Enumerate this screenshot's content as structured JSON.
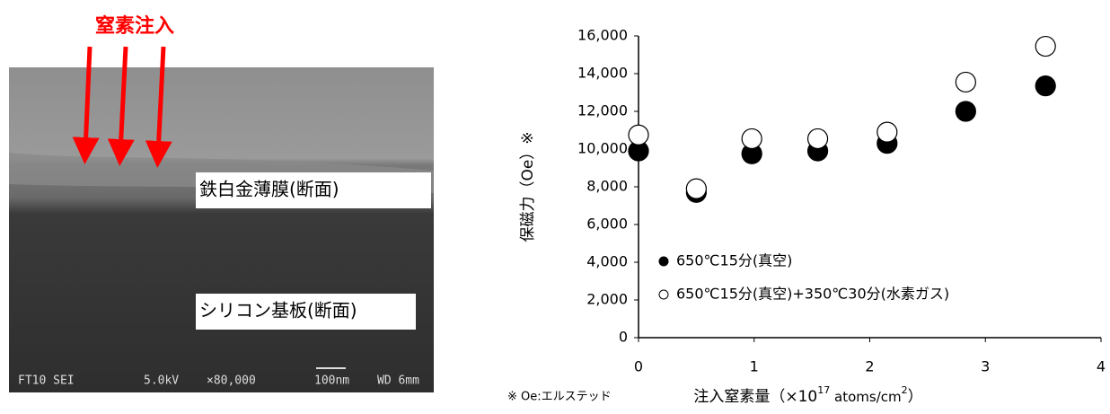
{
  "sem_image": {
    "heading": "窒素注入",
    "film_label": "鉄白金薄膜(断面)",
    "substrate_label": "シリコン基板(断面)",
    "footer": {
      "id": "FT10 SEI",
      "voltage": "5.0kV",
      "magnification": "×80,000",
      "scale": "100nm",
      "wd": "WD 6mm"
    }
  },
  "note": "※ Oe:エルステッド",
  "chart_data": {
    "type": "scatter",
    "y_label": "保磁力（Oe）※",
    "x_label": {
      "prefix": "注入窒素量（×10",
      "exp": "17",
      "unit": " atoms/cm",
      "unit_exp": "2",
      "suffix": "）"
    },
    "x": [
      0,
      0.5,
      0.98,
      1.55,
      2.15,
      2.83,
      3.52
    ],
    "series": [
      {
        "name": "650℃15分(真空)",
        "color": "#000000",
        "marker_fill": "#000000",
        "values": [
          9900,
          7700,
          9750,
          9900,
          10300,
          12000,
          13350
        ]
      },
      {
        "name": "650℃15分(真空)+350℃30分(水素ガス)",
        "color": "#000000",
        "marker_fill": "#ffffff",
        "values": [
          10750,
          7900,
          10550,
          10550,
          10900,
          13550,
          15450
        ]
      }
    ],
    "xlim": [
      0,
      4
    ],
    "xticks": [
      0,
      1,
      2,
      3,
      4
    ],
    "ylim": [
      0,
      16000
    ],
    "yticks": [
      0,
      {
        "value": 2000,
        "label": "2,000"
      },
      {
        "value": 4000,
        "label": "4,000"
      },
      {
        "value": 6000,
        "label": "6,000"
      },
      {
        "value": 8000,
        "label": "8,000"
      },
      {
        "value": 10000,
        "label": "10,000"
      },
      {
        "value": 12000,
        "label": "12,000"
      },
      {
        "value": 14000,
        "label": "14,000"
      },
      {
        "value": 16000,
        "label": "16,000"
      }
    ],
    "grid": false,
    "legend": "lower-left"
  }
}
